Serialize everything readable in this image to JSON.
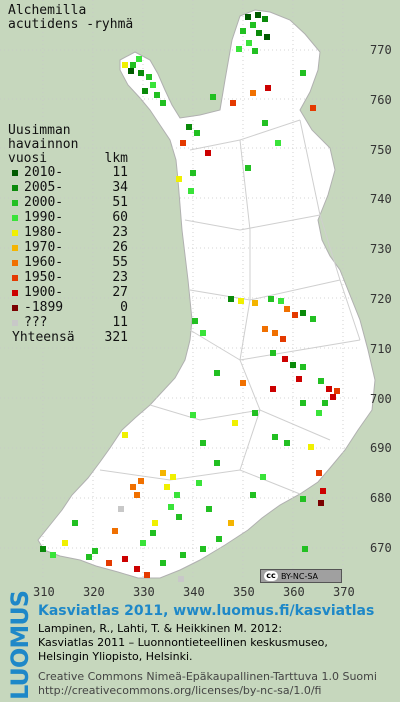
{
  "title": {
    "line1": "Alchemilla",
    "line2": "acutidens -ryhmä"
  },
  "legend": {
    "header": [
      "Uusimman",
      "havainnon",
      "vuosi"
    ],
    "count_header": "lkm",
    "rows": [
      {
        "label": "2010-",
        "count": "11",
        "color": "#005a00"
      },
      {
        "label": "2005-",
        "count": "34",
        "color": "#0a8a0a"
      },
      {
        "label": "2000-",
        "count": "51",
        "color": "#22c022"
      },
      {
        "label": "1990-",
        "count": "60",
        "color": "#39e339"
      },
      {
        "label": "1980-",
        "count": "23",
        "color": "#f0f000"
      },
      {
        "label": "1970-",
        "count": "26",
        "color": "#f4b400"
      },
      {
        "label": "1960-",
        "count": "55",
        "color": "#f07000"
      },
      {
        "label": "1950-",
        "count": "23",
        "color": "#e43a00"
      },
      {
        "label": "1900-",
        "count": "27",
        "color": "#cc0000"
      },
      {
        "label": "-1899",
        "count": "0",
        "color": "#7a0000"
      },
      {
        "label": "???",
        "count": "11",
        "color": "#c8c8c8"
      }
    ],
    "total_label": "Yhteensä",
    "total_count": "321"
  },
  "grid": {
    "y_ticks": [
      "770",
      "760",
      "750",
      "740",
      "730",
      "720",
      "710",
      "700",
      "690",
      "680",
      "670"
    ],
    "x_ticks": [
      "310",
      "320",
      "330",
      "340",
      "350",
      "360",
      "370"
    ]
  },
  "cc_badge": {
    "cc": "cc",
    "text": "BY-NC-SA"
  },
  "footer": {
    "brand": "LUOMUS",
    "headline": "Kasviatlas 2011, www.luomus.fi/kasviatlas",
    "cite1": "Lampinen, R., Lahti, T. & Heikkinen M. 2012:",
    "cite2": "Kasviatlas 2011 – Luonnontieteellinen keskusmuseo,",
    "cite3": "Helsingin Yliopisto, Helsinki.",
    "license1": "Creative Commons Nimeä-Epäkaupallinen-Tarttuva 1.0 Suomi",
    "license2": "http://creativecommons.org/licenses/by-nc-sa/1.0/fi"
  },
  "colors": {
    "background": "#c6d7bd",
    "land": "#ffffff",
    "border": "#c0c0c0",
    "brand": "#1e88c8"
  }
}
